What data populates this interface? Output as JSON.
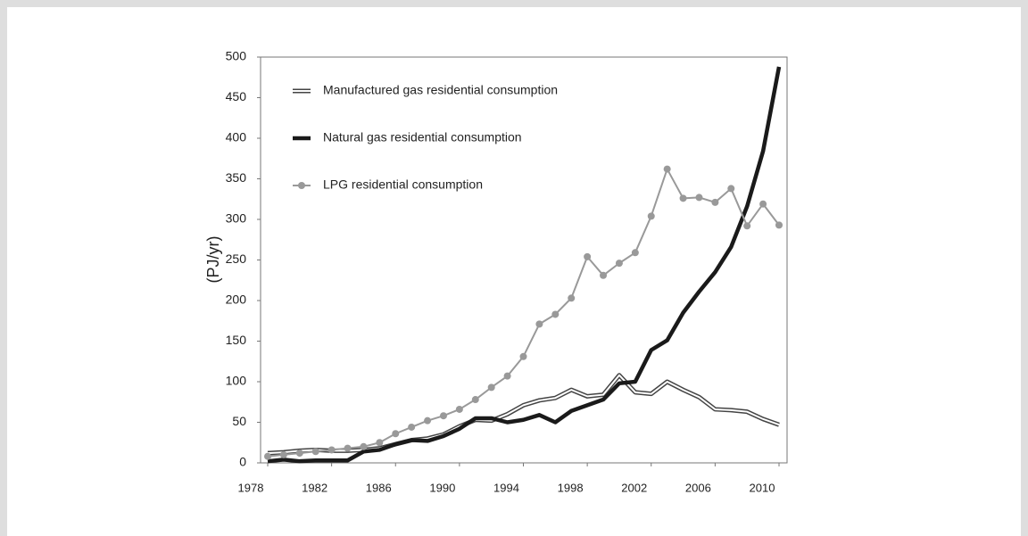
{
  "chart_data": {
    "type": "line",
    "ylabel": "(PJ/yr)",
    "x": [
      1978,
      1979,
      1980,
      1981,
      1982,
      1983,
      1984,
      1985,
      1986,
      1987,
      1988,
      1989,
      1990,
      1991,
      1992,
      1993,
      1994,
      1995,
      1996,
      1997,
      1998,
      1999,
      2000,
      2001,
      2002,
      2003,
      2004,
      2005,
      2006,
      2007,
      2008,
      2009,
      2010
    ],
    "series": [
      {
        "name": "Manufactured gas residential consumption",
        "color": "#444444",
        "style": "double",
        "values": [
          12,
          13,
          15,
          16,
          15,
          15,
          16,
          18,
          23,
          28,
          30,
          35,
          45,
          53,
          52,
          60,
          71,
          77,
          80,
          90,
          82,
          84,
          108,
          87,
          85,
          100,
          90,
          81,
          66,
          65,
          63,
          54,
          47
        ]
      },
      {
        "name": "Natural gas residential consumption",
        "color": "#1a1a1a",
        "style": "solid",
        "values": [
          2,
          4,
          2,
          3,
          3,
          3,
          14,
          16,
          23,
          28,
          27,
          33,
          42,
          55,
          55,
          50,
          53,
          59,
          50,
          64,
          71,
          78,
          98,
          100,
          139,
          151,
          185,
          211,
          235,
          266,
          316,
          384,
          488
        ]
      },
      {
        "name": "LPG residential consumption",
        "color": "#999999",
        "style": "marker",
        "values": [
          8,
          10,
          12,
          14,
          16,
          18,
          20,
          25,
          36,
          44,
          52,
          58,
          66,
          78,
          93,
          107,
          131,
          171,
          183,
          203,
          254,
          231,
          246,
          259,
          304,
          362,
          326,
          327,
          321,
          338,
          292,
          319,
          293
        ]
      }
    ],
    "xlim": [
      1978,
      2010
    ],
    "xticks": [
      1978,
      1982,
      1986,
      1990,
      1994,
      1998,
      2002,
      2006,
      2010
    ],
    "ylim": [
      0,
      500
    ],
    "yticks": [
      0,
      50,
      100,
      150,
      200,
      250,
      300,
      350,
      400,
      450,
      500
    ],
    "legend": "top-left"
  }
}
